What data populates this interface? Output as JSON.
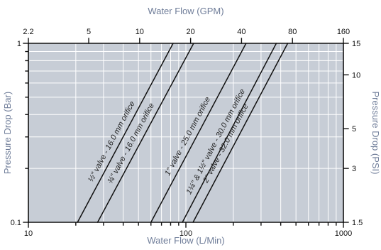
{
  "chart_data": {
    "type": "line",
    "title": "",
    "x_scale": "log",
    "y_scale": "log",
    "grid": true,
    "colors": {
      "plot_background": "#c7cdd6",
      "grid_line": "#ffffff",
      "series_line": "#111111",
      "axis_line": "#111111",
      "axis_title": "#6f7d99"
    },
    "axes": {
      "bottom": {
        "label": "Water Flow (L/Min)",
        "range": [
          10,
          1000
        ],
        "ticks": [
          "10",
          "100",
          "1000"
        ],
        "tick_values": [
          10,
          100,
          1000
        ]
      },
      "top": {
        "label": "Water Flow (GPM)",
        "range": [
          2.2,
          160
        ],
        "ticks": [
          "2.2",
          "5",
          "10",
          "20",
          "40",
          "80",
          "160"
        ],
        "tick_values": [
          2.2,
          5,
          10,
          20,
          40,
          80,
          160
        ]
      },
      "left": {
        "label": "Pressure Drop (Bar)",
        "range": [
          0.1,
          1
        ],
        "ticks": [
          "0.1",
          "1"
        ],
        "tick_values": [
          0.1,
          1
        ]
      },
      "right": {
        "label": "Pressure Drop (PSI)",
        "range": [
          1.5,
          15
        ],
        "ticks": [
          "1.5",
          "3",
          "5",
          "10",
          "15"
        ],
        "tick_values": [
          1.5,
          3,
          5,
          10,
          15
        ]
      }
    },
    "series": [
      {
        "name": "½\" valve - 16.0 mm orifice",
        "x": [
          20.5,
          83
        ],
        "y": [
          0.1,
          1
        ]
      },
      {
        "name": "¾\" valve - 16.0 mm orifice",
        "x": [
          27.5,
          112
        ],
        "y": [
          0.1,
          1
        ]
      },
      {
        "name": "1\" valve - 25.0 mm orifice",
        "x": [
          60,
          241
        ],
        "y": [
          0.1,
          1
        ]
      },
      {
        "name": "1¼\" & 1½\" valve - 30.0 mm orifice",
        "x": [
          95,
          375
        ],
        "y": [
          0.1,
          1
        ]
      },
      {
        "name": "2\" valve - 32.0 mm orifice",
        "x": [
          111,
          443
        ],
        "y": [
          0.1,
          1
        ]
      }
    ]
  }
}
